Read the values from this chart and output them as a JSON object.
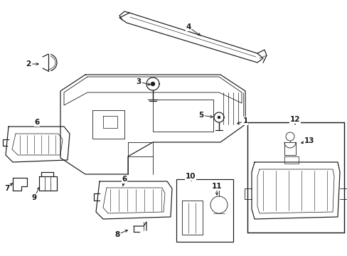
{
  "bg_color": "#ffffff",
  "line_color": "#1a1a1a",
  "lw": 0.85,
  "fs": 7.5
}
